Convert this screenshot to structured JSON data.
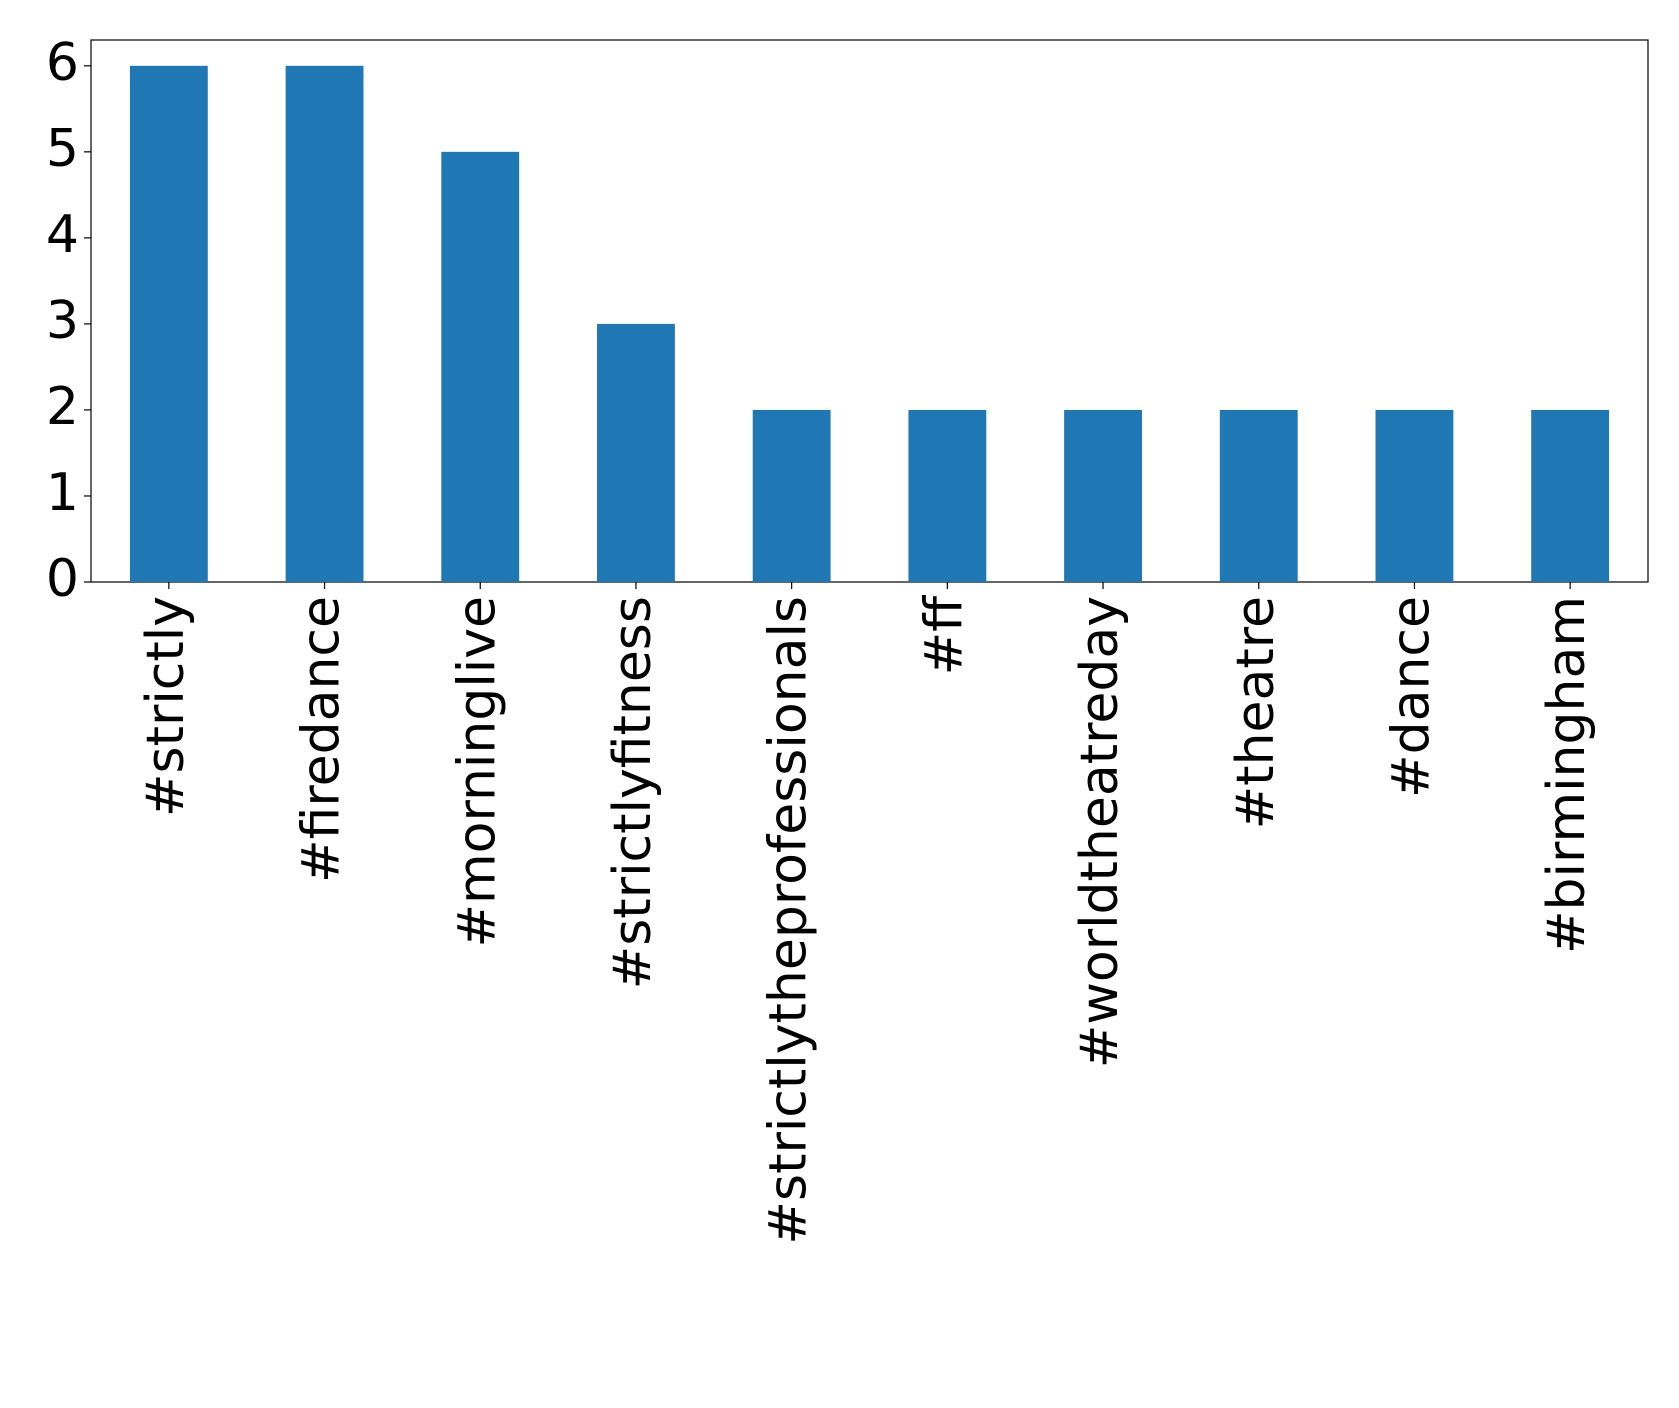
{
  "chart_data": {
    "type": "bar",
    "categories": [
      "#strictly",
      "#firedance",
      "#morninglive",
      "#strictlyfitness",
      "#strictlytheprofessionals",
      "#ff",
      "#worldtheatreday",
      "#theatre",
      "#dance",
      "#birmingham"
    ],
    "values": [
      6,
      6,
      5,
      3,
      2,
      2,
      2,
      2,
      2,
      2
    ],
    "color": "#1f77b4",
    "ylim": [
      0,
      6.3
    ],
    "yticks": [
      0,
      1,
      2,
      3,
      4,
      5,
      6
    ],
    "grid": false
  }
}
